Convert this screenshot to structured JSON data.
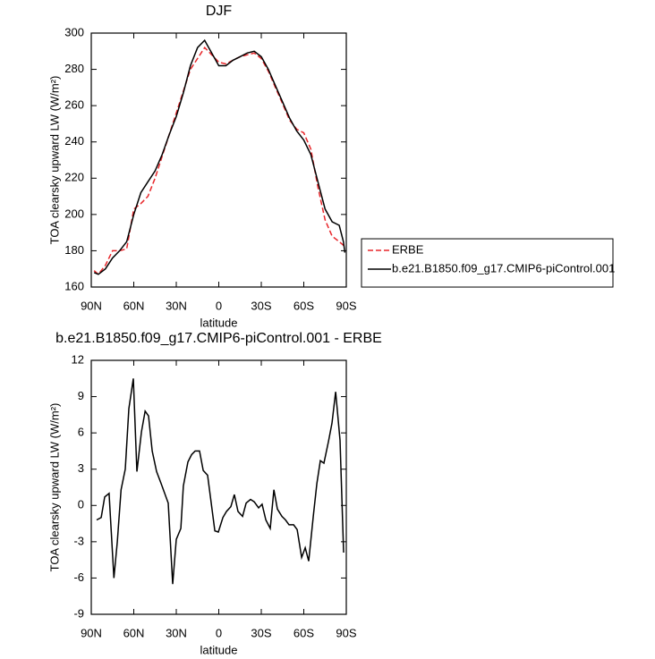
{
  "chart_data": [
    {
      "type": "line",
      "title": "DJF",
      "x_label": "latitude",
      "y_label": "TOA clearsky upward LW (W/m²)",
      "x": [
        88,
        85,
        80,
        75,
        70,
        65,
        60,
        55,
        50,
        45,
        40,
        35,
        30,
        25,
        20,
        15,
        10,
        5,
        0,
        -5,
        -10,
        -15,
        -20,
        -25,
        -30,
        -35,
        -40,
        -45,
        -50,
        -55,
        -60,
        -65,
        -70,
        -75,
        -80,
        -85,
        -88,
        -89
      ],
      "series": [
        {
          "name": "ERBE",
          "color": "#e8262a",
          "style": "dashed",
          "values": [
            169,
            167,
            172,
            180,
            180,
            181,
            203,
            206,
            210,
            220,
            232,
            244,
            256,
            268,
            280,
            286,
            292,
            288,
            284,
            283,
            285,
            287,
            288,
            289,
            286,
            279,
            270,
            261,
            252,
            247,
            245,
            236,
            215,
            197,
            188,
            185,
            183,
            182
          ]
        },
        {
          "name": "b.e21.B1850.f09_g17.CMIP6-piControl.001",
          "color": "#000000",
          "style": "solid",
          "values": [
            168,
            167,
            170,
            176,
            180,
            185,
            200,
            212,
            218,
            224,
            233,
            244,
            254,
            267,
            282,
            292,
            296,
            289,
            282,
            282,
            285,
            287,
            289,
            290,
            287,
            280,
            271,
            262,
            253,
            246,
            241,
            233,
            218,
            203,
            196,
            194,
            185,
            179
          ]
        }
      ],
      "xlim": [
        90,
        -90
      ],
      "xticks": [
        {
          "value": 90,
          "label": "90N"
        },
        {
          "value": 60,
          "label": "60N"
        },
        {
          "value": 30,
          "label": "30N"
        },
        0,
        {
          "value": -30,
          "label": "30S"
        },
        {
          "value": -60,
          "label": "60S"
        },
        {
          "value": -90,
          "label": "90S"
        }
      ],
      "ylim": [
        160,
        300
      ],
      "yticks": [
        160,
        180,
        200,
        220,
        240,
        260,
        280,
        300
      ],
      "legend": "right"
    },
    {
      "type": "line",
      "title": "b.e21.B1850.f09_g17.CMIP6-piControl.001 - ERBE",
      "x_label": "latitude",
      "y_label": "TOA clearsky upward LW (W/m²)",
      "x": [
        86.2,
        83,
        80.5,
        77.4,
        74,
        71.6,
        69,
        66,
        63.5,
        60.3,
        57.8,
        54.6,
        52,
        49.6,
        47,
        43.9,
        40.7,
        35.7,
        32.5,
        30,
        26.8,
        25,
        21.8,
        19.2,
        16.7,
        13.6,
        11,
        7.9,
        2.8,
        0.3,
        -2.9,
        -5.4,
        -8.5,
        -11,
        -13.6,
        -16.8,
        -19.3,
        -22.4,
        -25,
        -28.1,
        -30.6,
        -33.2,
        -36.3,
        -38.9,
        -41.4,
        -44.6,
        -47.1,
        -49.6,
        -52.8,
        -55.3,
        -58.5,
        -61,
        -63.5,
        -66.7,
        -69.2,
        -71.7,
        -74.2,
        -77.4,
        -79.9,
        -82.5,
        -85.6,
        -88.1
      ],
      "values": [
        -1.2,
        -1,
        0.7,
        1,
        -6,
        -3,
        1.3,
        3,
        8,
        10.5,
        2.8,
        6.1,
        7.8,
        7.4,
        4.5,
        2.8,
        1.8,
        0.2,
        -6.5,
        -2.8,
        -1.9,
        1.6,
        3.6,
        4.2,
        4.5,
        4.5,
        2.9,
        2.5,
        -2.1,
        -2.2,
        -1,
        -0.5,
        -0.1,
        0.9,
        -0.5,
        -0.9,
        0.2,
        0.5,
        0.3,
        -0.2,
        0.1,
        -1.2,
        -1.9,
        1.3,
        -0.3,
        -0.9,
        -1.2,
        -1.6,
        -1.6,
        -2,
        -4.3,
        -3.5,
        -4.6,
        -0.9,
        1.8,
        3.7,
        3.5,
        5.3,
        6.8,
        9.4,
        5.4,
        -3.9
      ],
      "color": "#000000",
      "xlim": [
        90,
        -90
      ],
      "xticks": [
        {
          "value": 90,
          "label": "90N"
        },
        {
          "value": 60,
          "label": "60N"
        },
        {
          "value": 30,
          "label": "30N"
        },
        0,
        {
          "value": -30,
          "label": "30S"
        },
        {
          "value": -60,
          "label": "60S"
        },
        {
          "value": -90,
          "label": "90S"
        }
      ],
      "ylim": [
        -9,
        12
      ],
      "yticks": [
        -9,
        -6,
        -3,
        0,
        3,
        6,
        9,
        12
      ]
    }
  ]
}
